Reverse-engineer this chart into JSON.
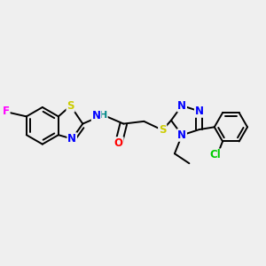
{
  "bg_color": "#efefef",
  "bond_color": "#000000",
  "atom_colors": {
    "F": "#ff00ff",
    "S": "#cccc00",
    "N": "#0000ff",
    "O": "#ff0000",
    "Cl": "#00cc00",
    "H": "#008888",
    "C": "#000000"
  },
  "figsize": [
    3.0,
    3.0
  ],
  "dpi": 100
}
